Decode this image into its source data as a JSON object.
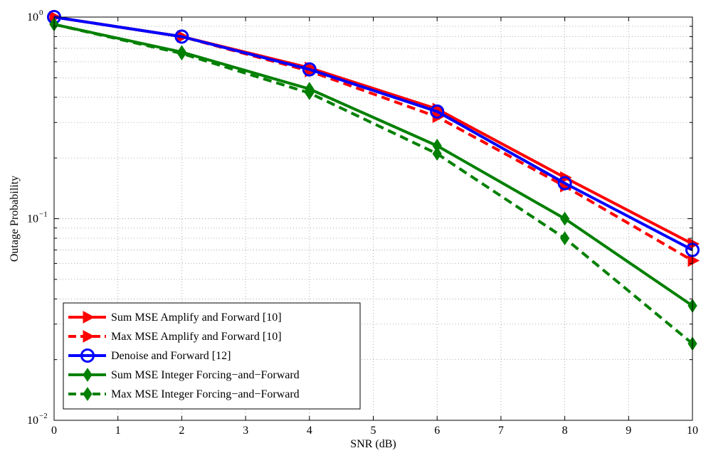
{
  "chart_data": {
    "type": "line",
    "title": "",
    "xlabel": "SNR (dB)",
    "ylabel": "Outage Probability",
    "xlim": [
      0,
      10
    ],
    "ylim": [
      0.01,
      1
    ],
    "yscale": "log",
    "grid": true,
    "legend_position": "lower-left",
    "x_ticks": [
      0,
      1,
      2,
      3,
      4,
      5,
      6,
      7,
      8,
      9,
      10
    ],
    "y_ticks": [
      {
        "value": 0.01,
        "base": "10",
        "exp": "−2"
      },
      {
        "value": 0.1,
        "base": "10",
        "exp": "−1"
      },
      {
        "value": 1,
        "base": "10",
        "exp": "0"
      }
    ],
    "x": [
      0,
      2,
      4,
      6,
      8,
      10
    ],
    "series": [
      {
        "name": "Sum MSE Amplify and Forward [10]",
        "color": "#ff0000",
        "dash": "solid",
        "marker": "triangle-right",
        "values": [
          1.0,
          0.8,
          0.56,
          0.35,
          0.16,
          0.075
        ]
      },
      {
        "name": "Max MSE Amplify and Forward [10]",
        "color": "#ff0000",
        "dash": "dashed",
        "marker": "triangle-right",
        "values": [
          1.0,
          0.8,
          0.54,
          0.32,
          0.145,
          0.062
        ]
      },
      {
        "name": "Denoise and Forward [12]",
        "color": "#0000ff",
        "dash": "solid",
        "marker": "circle",
        "values": [
          1.0,
          0.8,
          0.55,
          0.34,
          0.15,
          0.07
        ]
      },
      {
        "name": "Sum MSE Integer Forcing−and−Forward",
        "color": "#008000",
        "dash": "solid",
        "marker": "diamond",
        "values": [
          0.92,
          0.67,
          0.44,
          0.23,
          0.1,
          0.037
        ]
      },
      {
        "name": "Max MSE Integer Forcing−and−Forward",
        "color": "#008000",
        "dash": "dashed",
        "marker": "diamond",
        "values": [
          0.92,
          0.66,
          0.42,
          0.21,
          0.08,
          0.024
        ]
      }
    ]
  }
}
